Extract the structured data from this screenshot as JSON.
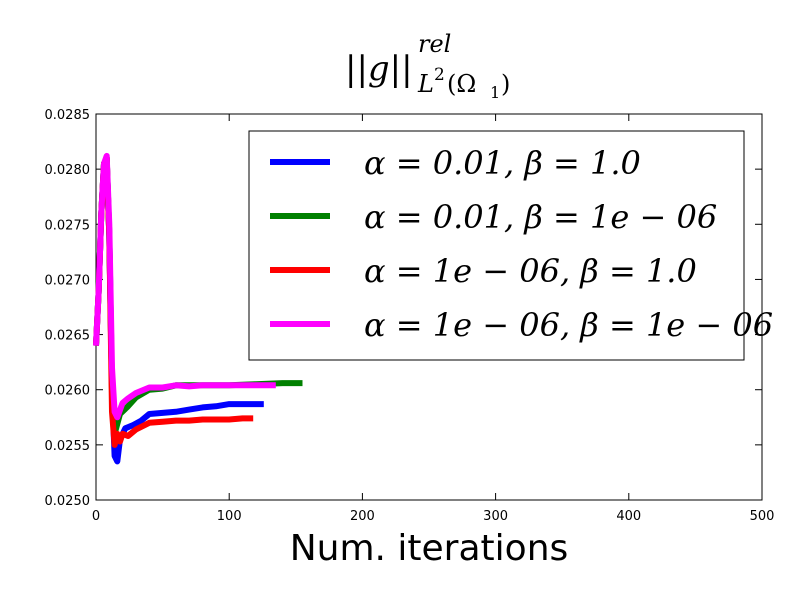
{
  "chart_data": {
    "type": "line",
    "title": {
      "base": "||g||",
      "superscript": "rel",
      "subscript": "L",
      "subscript_sup": "2",
      "subscript_arg": "(Ω",
      "subscript_arg_sub": "1",
      "subscript_close": ")"
    },
    "xlabel": "Num. iterations",
    "ylabel": "",
    "xlim": [
      0,
      500
    ],
    "ylim": [
      0.025,
      0.0285
    ],
    "xticks": [
      "0",
      "100",
      "200",
      "300",
      "400",
      "500"
    ],
    "xtick_values": [
      0,
      100,
      200,
      300,
      400,
      500
    ],
    "yticks": [
      "0.0250",
      "0.0255",
      "0.0260",
      "0.0265",
      "0.0270",
      "0.0275",
      "0.0280",
      "0.0285"
    ],
    "ytick_values": [
      0.025,
      0.0255,
      0.026,
      0.0265,
      0.027,
      0.0275,
      0.028,
      0.0285
    ],
    "grid": false,
    "legend_position": "top-right",
    "series": [
      {
        "name": "α = 0.01, β = 1.0",
        "color": "#0000ff",
        "points": [
          [
            0,
            0.0264
          ],
          [
            2,
            0.0269
          ],
          [
            4,
            0.0276
          ],
          [
            6,
            0.02805
          ],
          [
            8,
            0.0281
          ],
          [
            10,
            0.0274
          ],
          [
            12,
            0.026
          ],
          [
            14,
            0.0254
          ],
          [
            16,
            0.02535
          ],
          [
            18,
            0.02555
          ],
          [
            22,
            0.02565
          ],
          [
            28,
            0.02568
          ],
          [
            34,
            0.02572
          ],
          [
            40,
            0.02578
          ],
          [
            50,
            0.02579
          ],
          [
            60,
            0.0258
          ],
          [
            70,
            0.02582
          ],
          [
            80,
            0.02584
          ],
          [
            90,
            0.02585
          ],
          [
            100,
            0.02587
          ],
          [
            110,
            0.02587
          ],
          [
            120,
            0.02587
          ],
          [
            126,
            0.02587
          ]
        ]
      },
      {
        "name": "α = 0.01, β = 1e − 06",
        "color": "#008000",
        "points": [
          [
            0,
            0.0264
          ],
          [
            2,
            0.0269
          ],
          [
            4,
            0.0276
          ],
          [
            6,
            0.02805
          ],
          [
            8,
            0.0281
          ],
          [
            10,
            0.0274
          ],
          [
            12,
            0.026
          ],
          [
            14,
            0.0256
          ],
          [
            18,
            0.02578
          ],
          [
            24,
            0.02585
          ],
          [
            30,
            0.02593
          ],
          [
            40,
            0.026
          ],
          [
            50,
            0.02601
          ],
          [
            60,
            0.02604
          ],
          [
            70,
            0.02604
          ],
          [
            80,
            0.02604
          ],
          [
            100,
            0.02604
          ],
          [
            120,
            0.02605
          ],
          [
            140,
            0.02606
          ],
          [
            155,
            0.02606
          ]
        ]
      },
      {
        "name": "α = 1e − 06, β = 1.0",
        "color": "#ff0000",
        "points": [
          [
            0,
            0.0264
          ],
          [
            2,
            0.0269
          ],
          [
            4,
            0.0276
          ],
          [
            6,
            0.02805
          ],
          [
            8,
            0.0281
          ],
          [
            10,
            0.0274
          ],
          [
            12,
            0.0258
          ],
          [
            14,
            0.0255
          ],
          [
            16,
            0.0256
          ],
          [
            18,
            0.02553
          ],
          [
            20,
            0.0256
          ],
          [
            24,
            0.02558
          ],
          [
            30,
            0.02564
          ],
          [
            40,
            0.0257
          ],
          [
            50,
            0.02571
          ],
          [
            60,
            0.02572
          ],
          [
            70,
            0.02572
          ],
          [
            80,
            0.02573
          ],
          [
            90,
            0.02573
          ],
          [
            100,
            0.02573
          ],
          [
            110,
            0.02574
          ],
          [
            118,
            0.02574
          ]
        ]
      },
      {
        "name": "α = 1e − 06, β = 1e − 06",
        "color": "#ff00ff",
        "points": [
          [
            0,
            0.0264
          ],
          [
            2,
            0.0269
          ],
          [
            4,
            0.0276
          ],
          [
            6,
            0.02805
          ],
          [
            8,
            0.02812
          ],
          [
            10,
            0.0275
          ],
          [
            12,
            0.0262
          ],
          [
            14,
            0.0258
          ],
          [
            16,
            0.02575
          ],
          [
            20,
            0.02588
          ],
          [
            24,
            0.02592
          ],
          [
            30,
            0.02597
          ],
          [
            40,
            0.02602
          ],
          [
            50,
            0.02602
          ],
          [
            60,
            0.02604
          ],
          [
            70,
            0.02603
          ],
          [
            80,
            0.02604
          ],
          [
            100,
            0.02604
          ],
          [
            120,
            0.02604
          ],
          [
            135,
            0.02604
          ]
        ]
      }
    ]
  }
}
